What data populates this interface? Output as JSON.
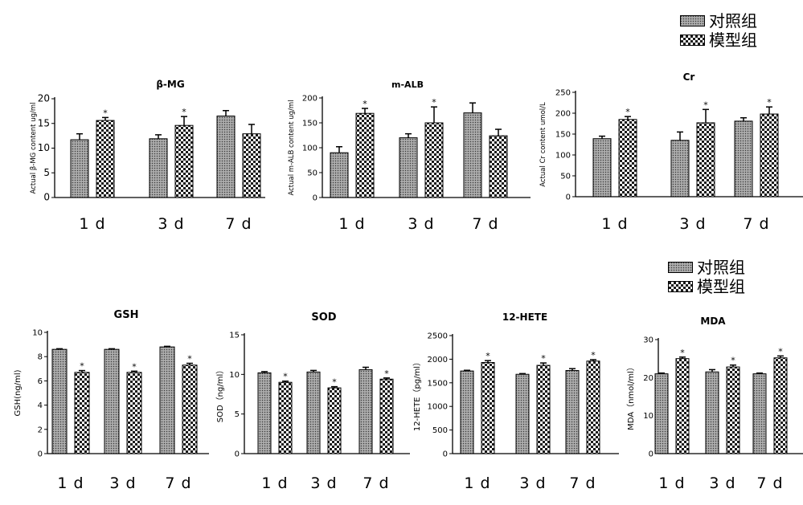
{
  "legend_top": {
    "items": [
      {
        "label": "对照组"
      },
      {
        "label": "模型组"
      }
    ]
  },
  "legend_bottom": {
    "items": [
      {
        "label": "对照组"
      },
      {
        "label": "模型组"
      }
    ]
  },
  "x_categories": [
    "1 d",
    "3 d",
    "7 d"
  ],
  "chart_data": [
    {
      "type": "bar",
      "title": "β-MG",
      "ylabel": "Actual β-MG content ug/ml",
      "categories": [
        "1 d",
        "3 d",
        "7 d"
      ],
      "ylim": [
        0,
        20
      ],
      "yticks": [
        "0",
        "5",
        "10",
        "15",
        "20"
      ],
      "series": [
        {
          "name": "对照组",
          "values": [
            11.7,
            11.9,
            16.5
          ],
          "errors": [
            1.2,
            0.8,
            1.1
          ]
        },
        {
          "name": "模型组",
          "values": [
            15.6,
            14.6,
            12.9
          ],
          "errors": [
            0.6,
            1.8,
            1.9
          ]
        }
      ],
      "significance": [
        "*",
        "*",
        ""
      ]
    },
    {
      "type": "bar",
      "title": "m-ALB",
      "ylabel": "Actual m-ALB content ug/ml",
      "categories": [
        "1 d",
        "3 d",
        "7 d"
      ],
      "ylim": [
        0,
        200
      ],
      "yticks": [
        "0",
        "50",
        "100",
        "150",
        "200"
      ],
      "series": [
        {
          "name": "对照组",
          "values": [
            90,
            120,
            170
          ],
          "errors": [
            12,
            8,
            20
          ]
        },
        {
          "name": "模型组",
          "values": [
            169,
            150,
            124
          ],
          "errors": [
            10,
            32,
            13
          ]
        }
      ],
      "significance": [
        "*",
        "*",
        ""
      ]
    },
    {
      "type": "bar",
      "title": "Cr",
      "ylabel": "Actual Cr content umol/L",
      "categories": [
        "1 d",
        "3 d",
        "7 d"
      ],
      "ylim": [
        0,
        250
      ],
      "yticks": [
        "0",
        "50",
        "100",
        "150",
        "200",
        "250"
      ],
      "series": [
        {
          "name": "对照组",
          "values": [
            139,
            135,
            181
          ],
          "errors": [
            6,
            20,
            8
          ]
        },
        {
          "name": "模型组",
          "values": [
            185,
            177,
            198
          ],
          "errors": [
            7,
            32,
            17
          ]
        }
      ],
      "significance": [
        "*",
        "*",
        "*"
      ]
    },
    {
      "type": "bar",
      "title": "GSH",
      "ylabel": "GSH(ng/ml)",
      "categories": [
        "1 d",
        "3 d",
        "7 d"
      ],
      "ylim": [
        0,
        10
      ],
      "yticks": [
        "0",
        "2",
        "4",
        "6",
        "8",
        "10"
      ],
      "series": [
        {
          "name": "对照组",
          "values": [
            8.6,
            8.6,
            8.8
          ],
          "errors": [
            0.05,
            0.05,
            0.05
          ]
        },
        {
          "name": "模型组",
          "values": [
            6.7,
            6.7,
            7.3
          ],
          "errors": [
            0.15,
            0.1,
            0.15
          ]
        }
      ],
      "significance": [
        "*",
        "*",
        "*"
      ]
    },
    {
      "type": "bar",
      "title": "SOD",
      "ylabel": "SOD（ng/ml）",
      "categories": [
        "1 d",
        "3 d",
        "7 d"
      ],
      "ylim": [
        0,
        15
      ],
      "yticks": [
        "0",
        "5",
        "10",
        "15"
      ],
      "series": [
        {
          "name": "对照组",
          "values": [
            10.2,
            10.3,
            10.6
          ],
          "errors": [
            0.15,
            0.2,
            0.3
          ]
        },
        {
          "name": "模型组",
          "values": [
            9.0,
            8.3,
            9.4
          ],
          "errors": [
            0.15,
            0.15,
            0.15
          ]
        }
      ],
      "significance": [
        "*",
        "*",
        "*"
      ]
    },
    {
      "type": "bar",
      "title": "12-HETE",
      "ylabel": "12-HETE（pg/ml）",
      "categories": [
        "1 d",
        "3 d",
        "7 d"
      ],
      "ylim": [
        0,
        2500
      ],
      "yticks": [
        "0",
        "500",
        "1000",
        "1500",
        "2000",
        "2500"
      ],
      "series": [
        {
          "name": "对照组",
          "values": [
            1750,
            1680,
            1760
          ],
          "errors": [
            15,
            15,
            40
          ]
        },
        {
          "name": "模型组",
          "values": [
            1930,
            1870,
            1960
          ],
          "errors": [
            40,
            50,
            30
          ]
        }
      ],
      "significance": [
        "*",
        "*",
        "*"
      ]
    },
    {
      "type": "bar",
      "title": "MDA",
      "ylabel": "MDA（nmol/ml）",
      "categories": [
        "1 d",
        "3 d",
        "7 d"
      ],
      "ylim": [
        0,
        30
      ],
      "yticks": [
        "0",
        "10",
        "20",
        "30"
      ],
      "series": [
        {
          "name": "对照组",
          "values": [
            21.0,
            21.5,
            21.0
          ],
          "errors": [
            0.2,
            0.6,
            0.2
          ]
        },
        {
          "name": "模型组",
          "values": [
            25.0,
            22.8,
            25.2
          ],
          "errors": [
            0.4,
            0.5,
            0.5
          ]
        }
      ],
      "significance": [
        "*",
        "*",
        "*"
      ]
    }
  ]
}
